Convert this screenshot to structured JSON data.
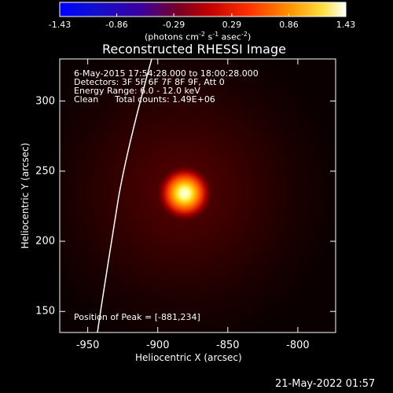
{
  "colorbar": {
    "ticks": [
      "-1.43",
      "-0.86",
      "-0.29",
      "0.29",
      "0.86",
      "1.43"
    ],
    "tick_values": [
      -1.43,
      -0.86,
      -0.29,
      0.29,
      0.86,
      1.43
    ],
    "range": [
      -1.43,
      1.43
    ],
    "units_prefix": "(photons cm",
    "units_exp1": "-2",
    "units_mid": " s",
    "units_exp2": "-1",
    "units_suffix": " asec",
    "units_exp3": "-2",
    "units_close": ")"
  },
  "title": "Reconstructed RHESSI Image",
  "info": {
    "line1": "6-May-2015 17:54:28.000 to 18:00:28.000",
    "line2": "Detectors: 3F 5F 6F 7F 8F 9F, Att 0",
    "line3": "Energy Range: 6.0 - 12.0 keV",
    "line4_a": "Clean",
    "line4_b": "Total counts: 1.49E+06"
  },
  "peak_label": "Position of Peak = [-881,234]",
  "peak_position": [
    -881,
    234
  ],
  "x_axis": {
    "label": "Heliocentric X (arcsec)",
    "ticks": [
      "-950",
      "-900",
      "-850",
      "-800"
    ],
    "tick_values": [
      -950,
      -900,
      -850,
      -800
    ],
    "range": [
      -970,
      -773
    ]
  },
  "y_axis": {
    "label": "Heliocentric Y (arcsec)",
    "ticks": [
      "150",
      "200",
      "250",
      "300"
    ],
    "tick_values": [
      150,
      200,
      250,
      300
    ],
    "range": [
      135,
      330
    ]
  },
  "timestamp": "21-May-2022 01:57",
  "colors": {
    "background": "#000000",
    "frame": "#ffffff",
    "limb": "#ffffff"
  }
}
